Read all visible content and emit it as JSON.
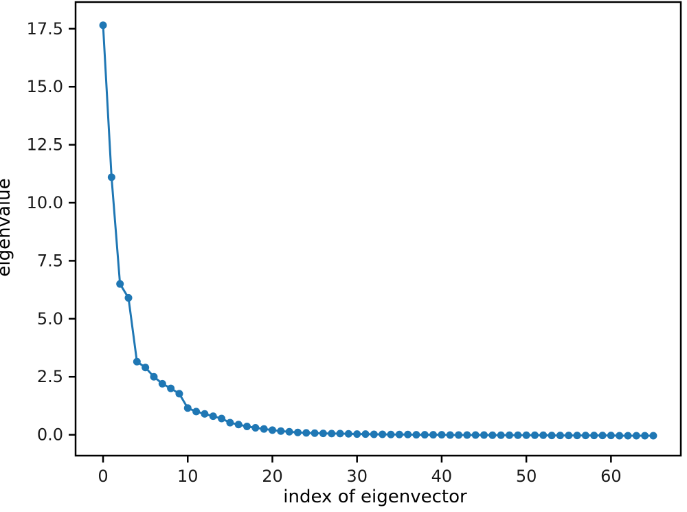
{
  "figure": {
    "background_color": "#ffffff",
    "axes_box_color": "#000000",
    "tick_label_color": "#1a1a1a"
  },
  "chart_data": {
    "type": "line",
    "title": "",
    "xlabel": "index of eigenvector",
    "ylabel": "eigenvalue",
    "series_name": "eigenvalues",
    "series_color": "#1f77b4",
    "marker": "circle",
    "grid": false,
    "legend_position": "none",
    "x": [
      0,
      1,
      2,
      3,
      4,
      5,
      6,
      7,
      8,
      9,
      10,
      11,
      12,
      13,
      14,
      15,
      16,
      17,
      18,
      19,
      20,
      21,
      22,
      23,
      24,
      25,
      26,
      27,
      28,
      29,
      30,
      31,
      32,
      33,
      34,
      35,
      36,
      37,
      38,
      39,
      40,
      41,
      42,
      43,
      44,
      45,
      46,
      47,
      48,
      49,
      50,
      51,
      52,
      53,
      54,
      55,
      56,
      57,
      58,
      59,
      60,
      61,
      62,
      63,
      64,
      65
    ],
    "values": [
      17.65,
      11.1,
      6.5,
      5.9,
      3.15,
      2.9,
      2.5,
      2.2,
      2.0,
      1.77,
      1.15,
      1.0,
      0.9,
      0.8,
      0.7,
      0.52,
      0.44,
      0.36,
      0.3,
      0.25,
      0.2,
      0.16,
      0.13,
      0.1,
      0.08,
      0.07,
      0.06,
      0.05,
      0.05,
      0.04,
      0.03,
      0.03,
      0.02,
      0.02,
      0.01,
      0.01,
      0.01,
      0.0,
      0.0,
      0.0,
      0.0,
      -0.01,
      -0.01,
      -0.01,
      -0.01,
      -0.01,
      -0.02,
      -0.02,
      -0.02,
      -0.02,
      -0.02,
      -0.02,
      -0.02,
      -0.03,
      -0.03,
      -0.03,
      -0.03,
      -0.03,
      -0.03,
      -0.03,
      -0.03,
      -0.04,
      -0.04,
      -0.04,
      -0.04,
      -0.04
    ],
    "xticks": [
      0,
      10,
      20,
      30,
      40,
      50,
      60
    ],
    "xtick_labels": [
      "0",
      "10",
      "20",
      "30",
      "40",
      "50",
      "60"
    ],
    "yticks": [
      0.0,
      2.5,
      5.0,
      7.5,
      10.0,
      12.5,
      15.0,
      17.5
    ],
    "ytick_labels": [
      "0.0",
      "2.5",
      "5.0",
      "7.5",
      "10.0",
      "12.5",
      "15.0",
      "17.5"
    ],
    "xlim": [
      -3.25,
      68.25
    ],
    "ylim": [
      -0.9,
      18.65
    ]
  }
}
